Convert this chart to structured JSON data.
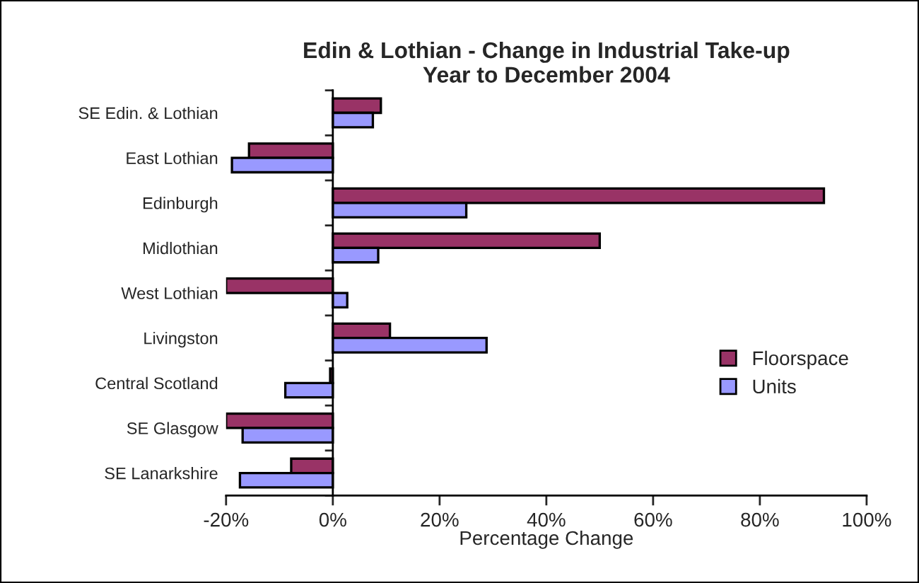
{
  "chart_data": {
    "type": "bar",
    "orientation": "horizontal",
    "title": "Edin & Lothian - Change in Industrial Take-up\nYear to December 2004",
    "xlabel": "Percentage Change",
    "categories": [
      "SE Edin. & Lothian",
      "East Lothian",
      "Edinburgh",
      "Midlothian",
      "West Lothian",
      "Livingston",
      "Central Scotland",
      "SE Glasgow",
      "SE Lanarkshire"
    ],
    "series": [
      {
        "name": "Floorspace",
        "color": "#993366",
        "values": [
          9.0,
          -15.7,
          92.0,
          50.0,
          -20.0,
          10.7,
          -0.5,
          -20.0,
          -7.8
        ]
      },
      {
        "name": "Units",
        "color": "#9999ff",
        "values": [
          7.5,
          -18.9,
          25.0,
          8.5,
          2.7,
          28.8,
          -8.9,
          -16.9,
          -17.4
        ]
      }
    ],
    "xlim": [
      -20,
      100
    ],
    "xticks": [
      {
        "value": -20,
        "label": "-20%"
      },
      {
        "value": 0,
        "label": "0%"
      },
      {
        "value": 20,
        "label": "20%"
      },
      {
        "value": 40,
        "label": "40%"
      },
      {
        "value": 60,
        "label": "60%"
      },
      {
        "value": 80,
        "label": "80%"
      },
      {
        "value": 100,
        "label": "100%"
      }
    ],
    "legend": "right"
  }
}
